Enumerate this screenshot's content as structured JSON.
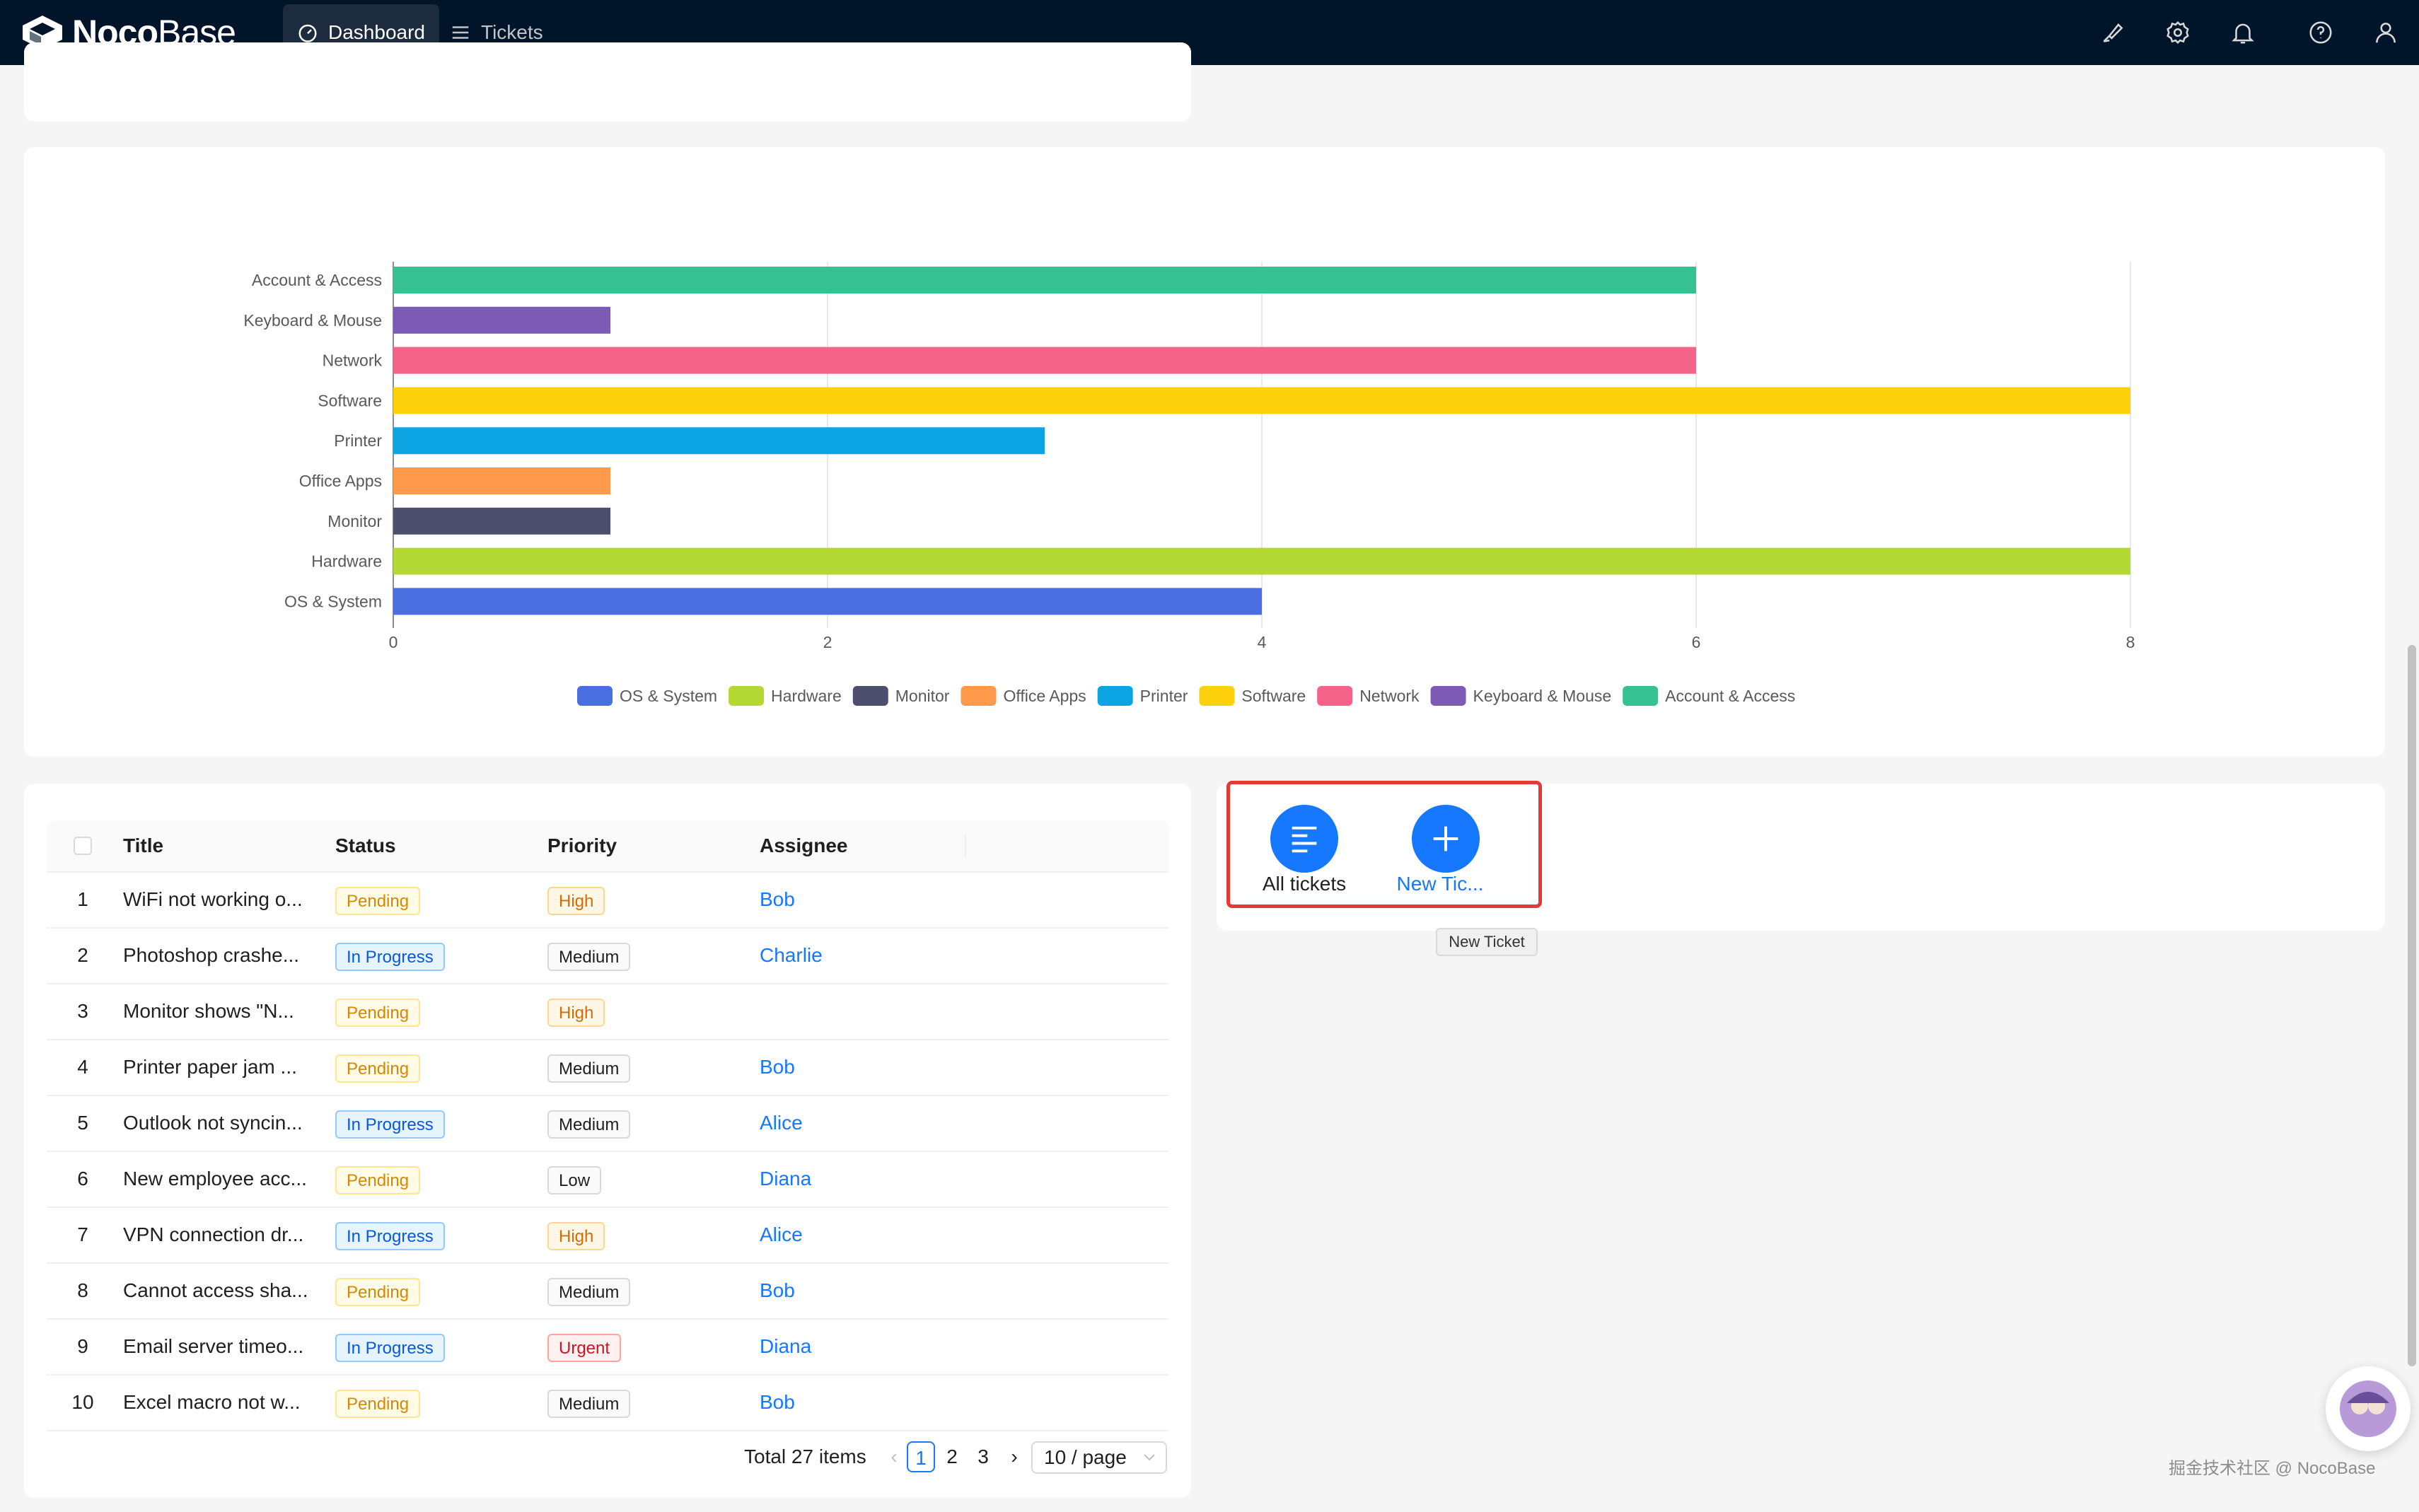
{
  "topbar": {
    "logo_bold": "Noco",
    "logo_light": "Base",
    "nav": [
      {
        "label": "Dashboard",
        "active": true,
        "icon": "dashboard-icon"
      },
      {
        "label": "Tickets",
        "active": false,
        "icon": "menu-icon"
      }
    ],
    "icons": [
      "brush-icon",
      "gear-icon",
      "bell-icon",
      "help-icon",
      "user-icon"
    ]
  },
  "chart_data": {
    "type": "bar",
    "orientation": "horizontal",
    "categories": [
      "Account & Access",
      "Keyboard & Mouse",
      "Network",
      "Software",
      "Printer",
      "Office Apps",
      "Monitor",
      "Hardware",
      "OS & System"
    ],
    "values": [
      6,
      1,
      6,
      8,
      3,
      1,
      1,
      8,
      4
    ],
    "colors": [
      "#36c193",
      "#7b5bb6",
      "#f5628a",
      "#fdd10c",
      "#0da4e3",
      "#ff9a4c",
      "#4d4f6f",
      "#b5d934",
      "#4b6fe0"
    ],
    "xlim": [
      0,
      8
    ],
    "x_ticks": [
      "0",
      "2",
      "4",
      "6",
      "8"
    ],
    "legend": [
      "OS & System",
      "Hardware",
      "Monitor",
      "Office Apps",
      "Printer",
      "Software",
      "Network",
      "Keyboard & Mouse",
      "Account & Access"
    ],
    "legend_colors": [
      "#4b6fe0",
      "#b5d934",
      "#4d4f6f",
      "#ff9a4c",
      "#0da4e3",
      "#fdd10c",
      "#f5628a",
      "#7b5bb6",
      "#36c193"
    ],
    "legend_position": "bottom",
    "grid": true
  },
  "table": {
    "headers": {
      "title": "Title",
      "status": "Status",
      "priority": "Priority",
      "assignee": "Assignee"
    },
    "rows": [
      {
        "idx": "1",
        "title": "WiFi not working o...",
        "status": "Pending",
        "priority": "High",
        "assignee": "Bob"
      },
      {
        "idx": "2",
        "title": "Photoshop crashe...",
        "status": "In Progress",
        "priority": "Medium",
        "assignee": "Charlie"
      },
      {
        "idx": "3",
        "title": "Monitor shows \"N...",
        "status": "Pending",
        "priority": "High",
        "assignee": ""
      },
      {
        "idx": "4",
        "title": "Printer paper jam ...",
        "status": "Pending",
        "priority": "Medium",
        "assignee": "Bob"
      },
      {
        "idx": "5",
        "title": "Outlook not syncin...",
        "status": "In Progress",
        "priority": "Medium",
        "assignee": "Alice"
      },
      {
        "idx": "6",
        "title": "New employee acc...",
        "status": "Pending",
        "priority": "Low",
        "assignee": "Diana"
      },
      {
        "idx": "7",
        "title": "VPN connection dr...",
        "status": "In Progress",
        "priority": "High",
        "assignee": "Alice"
      },
      {
        "idx": "8",
        "title": "Cannot access sha...",
        "status": "Pending",
        "priority": "Medium",
        "assignee": "Bob"
      },
      {
        "idx": "9",
        "title": "Email server timeo...",
        "status": "In Progress",
        "priority": "Urgent",
        "assignee": "Diana"
      },
      {
        "idx": "10",
        "title": "Excel macro not w...",
        "status": "Pending",
        "priority": "Medium",
        "assignee": "Bob"
      }
    ],
    "pagination": {
      "total": "Total 27 items",
      "pages": [
        "1",
        "2",
        "3"
      ],
      "current": "1",
      "page_size": "10 / page"
    }
  },
  "actions": {
    "all_tickets": "All tickets",
    "new_ticket": "New Tic...",
    "tooltip": "New Ticket"
  },
  "watermark": "掘金技术社区 @ NocoBase"
}
